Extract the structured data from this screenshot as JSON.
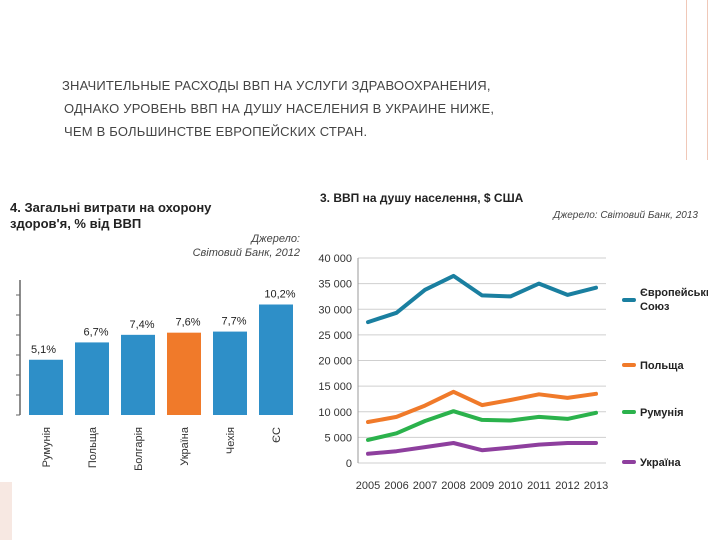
{
  "slide_title": {
    "line1": "ЗНАЧИТЕЛЬНЫЕ РАСХОДЫ ВВП НА УСЛУГИ ЗДРАВООХРАНЕНИЯ,",
    "line2": "ОДНАКО УРОВЕНЬ ВВП НА ДУШУ НАСЕЛЕНИЯ В УКРАИНЕ НИЖЕ,",
    "line3": "ЧЕМ В БОЛЬШИНСТВЕ ЕВРОПЕЙСКИХ СТРАН."
  },
  "colors": {
    "bar_default": "#2e8fc8",
    "bar_highlight": "#f07a2a",
    "line_eu": "#1a7fa0",
    "line_poland": "#f07a2a",
    "line_romania": "#2bb24c",
    "line_ukraine": "#8e3f9e"
  },
  "chart_data": [
    {
      "type": "bar",
      "title_line1": "4. Загальні витрати на охорону",
      "title_line2": "здоров'я, % від ВВП",
      "source_line1": "Джерело:",
      "source_line2": "Світовий Банк, 2012",
      "categories": [
        "Румунія",
        "Польща",
        "Болгарія",
        "Україна",
        "Чехія",
        "ЄС"
      ],
      "values": [
        5.1,
        6.7,
        7.4,
        7.6,
        7.7,
        10.2
      ],
      "value_labels": [
        "5,1%",
        "6,7%",
        "7,4%",
        "7,6%",
        "7,7%",
        "10,2%"
      ],
      "highlight": "Україна",
      "ylim": [
        0,
        12
      ]
    },
    {
      "type": "line",
      "title": "3. ВВП на душу населення, $ США",
      "source": "Джерело: Світовий Банк, 2013",
      "x": [
        "2005",
        "2006",
        "2007",
        "2008",
        "2009",
        "2010",
        "2011",
        "2012",
        "2013"
      ],
      "y_ticks": [
        "0",
        "5 000",
        "10 000",
        "15 000",
        "20 000",
        "25 000",
        "30 000",
        "35 000",
        "40 000"
      ],
      "ylim": [
        0,
        40000
      ],
      "series": [
        {
          "name_line1": "Європейський",
          "name_line2": "Союз",
          "values": [
            27500,
            29300,
            33800,
            36500,
            32700,
            32500,
            35000,
            32800,
            34200
          ]
        },
        {
          "name_line1": "Польща",
          "name_line2": "",
          "values": [
            8000,
            9000,
            11200,
            13900,
            11300,
            12300,
            13400,
            12700,
            13500
          ]
        },
        {
          "name_line1": "Румунія",
          "name_line2": "",
          "values": [
            4500,
            5800,
            8200,
            10100,
            8400,
            8300,
            9000,
            8600,
            9800
          ]
        },
        {
          "name_line1": "Україна",
          "name_line2": "",
          "values": [
            1800,
            2300,
            3100,
            3900,
            2500,
            3000,
            3600,
            3900,
            3900
          ]
        }
      ]
    }
  ]
}
